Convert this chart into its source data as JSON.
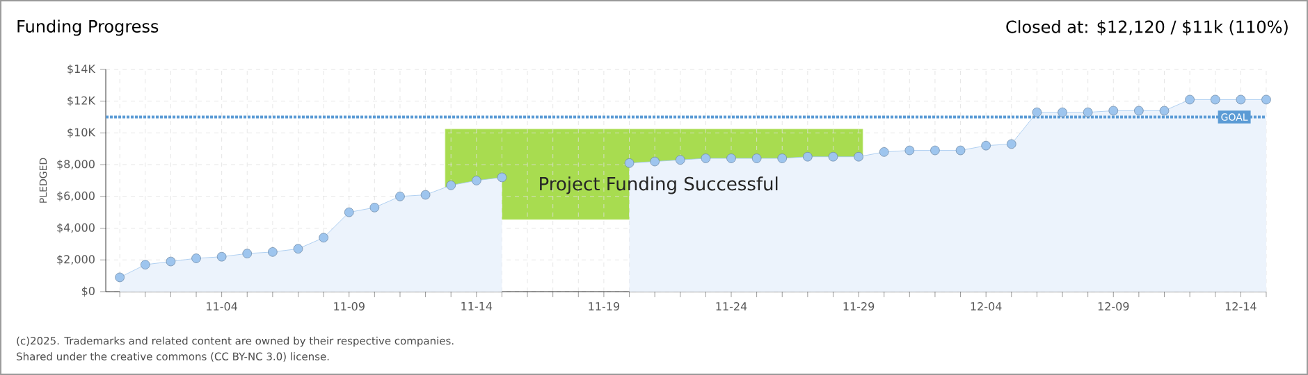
{
  "chart_data": {
    "type": "area",
    "title": "Funding Progress",
    "subtitle": "Closed at: $12,120 / $11k (110%)",
    "ylabel": "PLEDGED",
    "categories": [
      null,
      null,
      null,
      null,
      "11-04",
      null,
      null,
      null,
      null,
      "11-09",
      null,
      null,
      null,
      null,
      "11-14",
      null,
      null,
      null,
      null,
      "11-19",
      null,
      null,
      null,
      null,
      "11-24",
      null,
      null,
      null,
      null,
      "11-29",
      null,
      null,
      null,
      null,
      "12-04",
      null,
      null,
      null,
      null,
      "12-09",
      null,
      null,
      null,
      null,
      "12-14",
      null
    ],
    "series": [
      {
        "color": "#9ec5ee",
        "values": [
          900,
          1700,
          1900,
          2100,
          2200,
          2400,
          2500,
          2700,
          3400,
          5000,
          5300,
          6000,
          6100,
          6700,
          7000,
          7200,
          null,
          null,
          null,
          null,
          8100,
          8200,
          8300,
          8400,
          8400,
          8400,
          8400,
          8500,
          8500,
          8500,
          8800,
          8900,
          8900,
          8900,
          9200,
          9300,
          11300,
          11300,
          11300,
          11400,
          11400,
          11400,
          12100,
          12100,
          12100,
          12100
        ]
      }
    ],
    "ylim": [
      0,
      14000
    ],
    "yticks": [
      {
        "value": 0,
        "label": "$0"
      },
      {
        "value": 2000,
        "label": "$2,000"
      },
      {
        "value": 4000,
        "label": "$4,000"
      },
      {
        "value": 6000,
        "label": "$6,000"
      },
      {
        "value": 8000,
        "label": "$8,000"
      },
      {
        "value": 10000,
        "label": "$10K"
      },
      {
        "value": 12000,
        "label": "$12K"
      },
      {
        "value": 14000,
        "label": "$14K"
      }
    ],
    "grid": true,
    "marker": "circle",
    "line_style": "solid",
    "ref_lines": [
      {
        "axis": "y",
        "value": 11000,
        "label": "GOAL",
        "color": "#5b9bd5",
        "line_style": "dotted"
      }
    ],
    "annotations": [
      "Project Funding Successful",
      "(c)2025. Trademarks and related content are owned by their respective companies.",
      "Shared under the creative commons (CC BY-NC 3.0) license."
    ]
  }
}
